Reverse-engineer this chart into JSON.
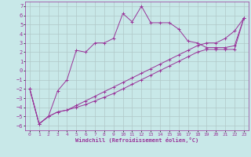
{
  "xlabel": "Windchill (Refroidissement éolien,°C)",
  "xlim": [
    -0.5,
    23.5
  ],
  "ylim": [
    -6.5,
    7.5
  ],
  "xticks": [
    0,
    1,
    2,
    3,
    4,
    5,
    6,
    7,
    8,
    9,
    10,
    11,
    12,
    13,
    14,
    15,
    16,
    17,
    18,
    19,
    20,
    21,
    22,
    23
  ],
  "yticks": [
    -6,
    -5,
    -4,
    -3,
    -2,
    -1,
    0,
    1,
    2,
    3,
    4,
    5,
    6,
    7
  ],
  "background_color": "#c8e8e8",
  "grid_color": "#b0c8c8",
  "line_color": "#993399",
  "curve1_x": [
    0,
    1,
    2,
    3,
    4,
    5,
    6,
    7,
    8,
    9,
    10,
    11,
    12,
    13,
    14,
    15,
    16,
    17,
    18,
    19,
    20,
    21,
    22,
    23
  ],
  "curve1_y": [
    -2,
    -5.8,
    -5.0,
    -2.2,
    -1.0,
    2.2,
    2.0,
    3.0,
    3.0,
    3.5,
    6.2,
    5.3,
    7.0,
    5.2,
    5.2,
    5.2,
    4.5,
    3.2,
    3.0,
    2.5,
    2.5,
    2.5,
    2.7,
    5.7
  ],
  "curve2_x": [
    0,
    1,
    2,
    3,
    4,
    5,
    6,
    7,
    8,
    9,
    10,
    11,
    12,
    13,
    14,
    15,
    16,
    17,
    18,
    19,
    20,
    21,
    22,
    23
  ],
  "curve2_y": [
    -2,
    -5.8,
    -5.0,
    -4.5,
    -4.3,
    -3.8,
    -3.3,
    -2.8,
    -2.3,
    -1.8,
    -1.3,
    -0.8,
    -0.3,
    0.2,
    0.7,
    1.2,
    1.7,
    2.2,
    2.7,
    3.0,
    3.0,
    3.5,
    4.3,
    5.7
  ],
  "curve3_x": [
    0,
    1,
    2,
    3,
    4,
    5,
    6,
    7,
    8,
    9,
    10,
    11,
    12,
    13,
    14,
    15,
    16,
    17,
    18,
    19,
    20,
    21,
    22,
    23
  ],
  "curve3_y": [
    -2,
    -5.8,
    -5.0,
    -4.5,
    -4.3,
    -4.0,
    -3.7,
    -3.3,
    -2.9,
    -2.5,
    -2.0,
    -1.5,
    -1.0,
    -0.5,
    0.0,
    0.5,
    1.0,
    1.5,
    2.0,
    2.3,
    2.3,
    2.3,
    2.3,
    5.7
  ]
}
